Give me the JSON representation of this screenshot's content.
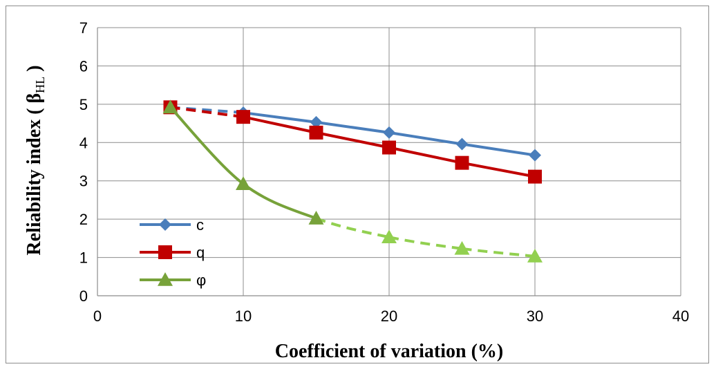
{
  "chart_data": {
    "type": "line",
    "xlabel": "Coefficient of variation  (%)",
    "ylabel": {
      "main": "Reliability index ( β",
      "sub": "HL",
      "tail": " )"
    },
    "xlim": [
      0,
      40
    ],
    "ylim": [
      0,
      7
    ],
    "x_ticks": [
      0,
      10,
      20,
      30,
      40
    ],
    "y_ticks": [
      0,
      1,
      2,
      3,
      4,
      5,
      6,
      7
    ],
    "grid": true,
    "legend_position": "left-bottom",
    "series": [
      {
        "name": "c",
        "color": "#4a7ebb",
        "marker": "diamond",
        "x": [
          5,
          10,
          15,
          20,
          25,
          30
        ],
        "y": [
          4.92,
          4.78,
          4.53,
          4.26,
          3.96,
          3.67
        ],
        "dashed_segments": [
          0
        ]
      },
      {
        "name": "q",
        "color": "#c00000",
        "marker": "square",
        "x": [
          5,
          10,
          15,
          20,
          25,
          30
        ],
        "y": [
          4.92,
          4.67,
          4.26,
          3.87,
          3.47,
          3.11
        ],
        "dashed_segments": [
          0
        ]
      },
      {
        "name": "φ",
        "color": "#77a23a",
        "dash_color": "#92d050",
        "marker": "triangle",
        "x": [
          5,
          10,
          15,
          20,
          25,
          30
        ],
        "y": [
          4.92,
          2.92,
          2.02,
          1.53,
          1.23,
          1.03
        ],
        "dashed_segments": [
          2,
          3,
          4
        ],
        "smooth": true
      }
    ]
  }
}
